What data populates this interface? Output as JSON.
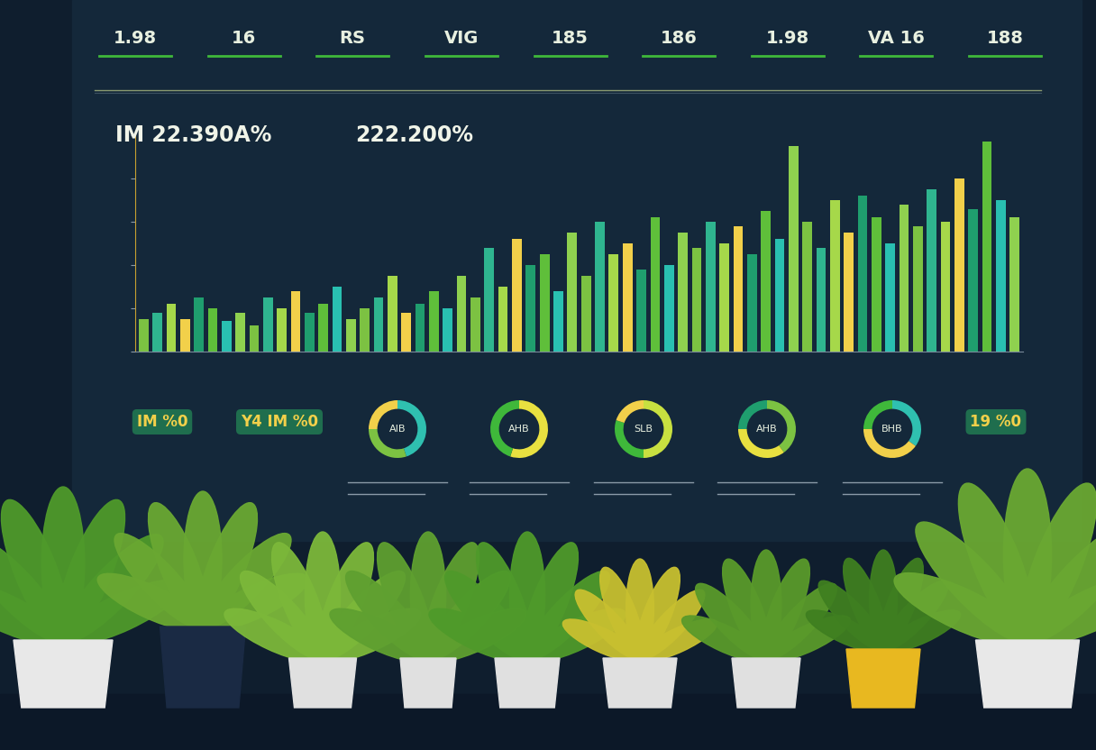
{
  "header": {
    "stats": [
      "1.98",
      "16",
      "RS",
      "VIG",
      "185",
      "186",
      "1.98",
      "VA 16",
      "188"
    ]
  },
  "main_stats": [
    "IM 22.390A%",
    "222.200%"
  ],
  "chart_data": {
    "type": "bar",
    "values": [
      15,
      18,
      22,
      15,
      25,
      20,
      14,
      18,
      12,
      25,
      20,
      28,
      18,
      22,
      30,
      15,
      20,
      25,
      35,
      18,
      22,
      28,
      20,
      35,
      25,
      48,
      30,
      52,
      40,
      45,
      28,
      55,
      35,
      60,
      45,
      50,
      38,
      62,
      40,
      55,
      48,
      60,
      50,
      58,
      45,
      65,
      52,
      95,
      60,
      48,
      70,
      55,
      72,
      62,
      50,
      68,
      58,
      75,
      60,
      80,
      66,
      97,
      70,
      62
    ],
    "colors": [
      "#7cc242",
      "#2fb58f",
      "#a6d84a",
      "#f2d04a",
      "#1f9e6e",
      "#5fbf3a",
      "#29c0b1",
      "#8fd14f",
      "#7cc242",
      "#2fb58f",
      "#a6d84a",
      "#f2d04a",
      "#1f9e6e",
      "#5fbf3a",
      "#29c0b1",
      "#8fd14f",
      "#7cc242",
      "#2fb58f",
      "#a6d84a",
      "#f2d04a",
      "#1f9e6e",
      "#5fbf3a",
      "#29c0b1",
      "#8fd14f",
      "#7cc242",
      "#2fb58f",
      "#a6d84a",
      "#f2d04a",
      "#1f9e6e",
      "#5fbf3a",
      "#29c0b1",
      "#8fd14f",
      "#7cc242",
      "#2fb58f",
      "#a6d84a",
      "#f2d04a",
      "#1f9e6e",
      "#5fbf3a",
      "#29c0b1",
      "#8fd14f",
      "#7cc242",
      "#2fb58f",
      "#a6d84a",
      "#f2d04a",
      "#1f9e6e",
      "#5fbf3a",
      "#29c0b1",
      "#8fd14f",
      "#7cc242",
      "#2fb58f",
      "#a6d84a",
      "#f2d04a",
      "#1f9e6e",
      "#5fbf3a",
      "#29c0b1",
      "#8fd14f",
      "#7cc242",
      "#2fb58f",
      "#a6d84a",
      "#f2d04a",
      "#1f9e6e",
      "#5fbf3a",
      "#29c0b1",
      "#8fd14f"
    ],
    "ylim": [
      0,
      100
    ],
    "yticks": [
      0,
      20,
      40,
      60,
      80,
      100
    ],
    "grid": false,
    "tick_labels": false
  },
  "side_stats": [
    "IM %0",
    "Y4 IM %0",
    "19 %0"
  ],
  "donuts": [
    {
      "type": "pie",
      "label": "AIB",
      "values": [
        45,
        30,
        25
      ],
      "colors": [
        "#2fc0b0",
        "#7cc242",
        "#f2d04a"
      ]
    },
    {
      "type": "pie",
      "label": "AHB",
      "values": [
        55,
        45
      ],
      "colors": [
        "#e8e040",
        "#3fb83a"
      ]
    },
    {
      "type": "pie",
      "label": "SLB",
      "values": [
        50,
        30,
        20
      ],
      "colors": [
        "#c8e040",
        "#3fb83a",
        "#f2d04a"
      ]
    },
    {
      "type": "pie",
      "label": "AHB",
      "values": [
        40,
        35,
        25
      ],
      "colors": [
        "#7cc242",
        "#e8e040",
        "#1f9e6e"
      ]
    },
    {
      "type": "pie",
      "label": "BHB",
      "values": [
        35,
        40,
        25
      ],
      "colors": [
        "#2fc0b0",
        "#f2d04a",
        "#3fb83a"
      ]
    }
  ]
}
